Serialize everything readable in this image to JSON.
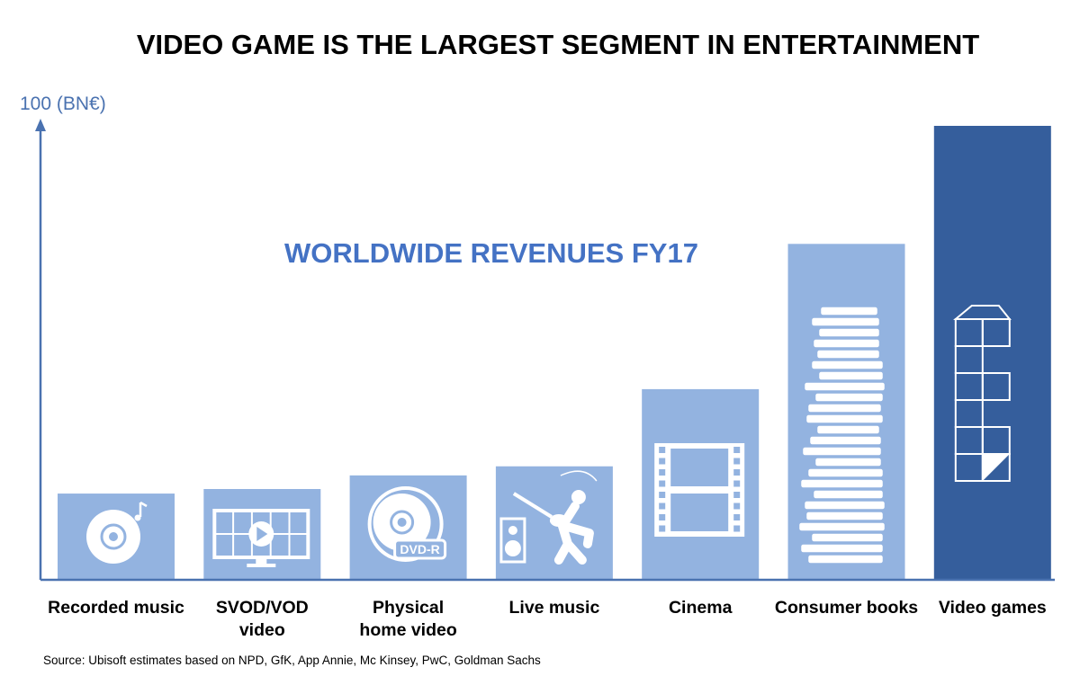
{
  "chart_data": {
    "type": "bar",
    "title": "VIDEO GAME IS THE LARGEST SEGMENT IN ENTERTAINMENT",
    "subtitle": "WORLDWIDE REVENUES FY17",
    "ylabel": "100 (BN€)",
    "ylim": [
      0,
      100
    ],
    "categories": [
      [
        "Recorded music"
      ],
      [
        "SVOD/VOD",
        "video"
      ],
      [
        "Physical",
        "home video"
      ],
      [
        "Live music"
      ],
      [
        "Cinema"
      ],
      [
        "Consumer books"
      ],
      [
        "Video games"
      ]
    ],
    "values": [
      19,
      20,
      23,
      25,
      42,
      74,
      100
    ],
    "icons": [
      "vinyl-record-icon",
      "streaming-tv-icon",
      "dvd-disc-icon",
      "guitar-smash-icon",
      "film-strip-icon",
      "book-stack-icon",
      "tetris-block-icon"
    ],
    "source": "Source: Ubisoft estimates based on NPD, GfK, App Annie, Mc Kinsey, PwC, Goldman Sachs"
  },
  "colors": {
    "bar": "#93B3E0",
    "highlight": "#355E9C",
    "axis": "#4A72B0",
    "title": "#000000",
    "subtitle": "#4472C4",
    "icon": "#ffffff"
  }
}
